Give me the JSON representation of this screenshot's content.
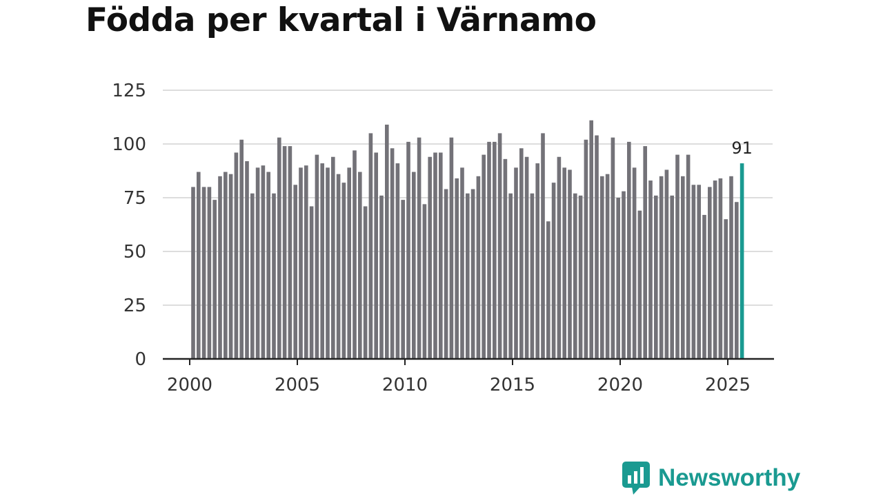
{
  "chart_data": {
    "type": "bar",
    "title": "Födda per kvartal i Värnamo",
    "xlabel": "",
    "ylabel": "",
    "ylim": [
      0,
      125
    ],
    "yticks": [
      0,
      25,
      50,
      75,
      100,
      125
    ],
    "xticks": [
      2000,
      2005,
      2010,
      2015,
      2020,
      2025
    ],
    "start_period": "2000 Q1",
    "end_period": "2025 Q3",
    "values": [
      80,
      87,
      80,
      80,
      74,
      85,
      87,
      86,
      96,
      102,
      92,
      77,
      89,
      90,
      87,
      77,
      103,
      99,
      99,
      81,
      89,
      90,
      71,
      95,
      91,
      89,
      94,
      86,
      82,
      89,
      97,
      87,
      71,
      105,
      96,
      76,
      109,
      98,
      91,
      74,
      101,
      87,
      103,
      72,
      94,
      96,
      96,
      79,
      103,
      84,
      89,
      77,
      79,
      85,
      95,
      101,
      101,
      105,
      93,
      77,
      89,
      98,
      94,
      77,
      91,
      105,
      64,
      82,
      94,
      89,
      88,
      77,
      76,
      102,
      111,
      104,
      85,
      86,
      103,
      75,
      78,
      101,
      89,
      69,
      99,
      83,
      76,
      85,
      88,
      76,
      95,
      85,
      95,
      81,
      81,
      67,
      80,
      83,
      84,
      65,
      85,
      73,
      91
    ],
    "highlight_label": "91",
    "bar_color": "#737278",
    "highlight_color": "#1a9a91",
    "grid": true
  },
  "brand": {
    "name": "Newsworthy",
    "color": "#1a9a91"
  }
}
